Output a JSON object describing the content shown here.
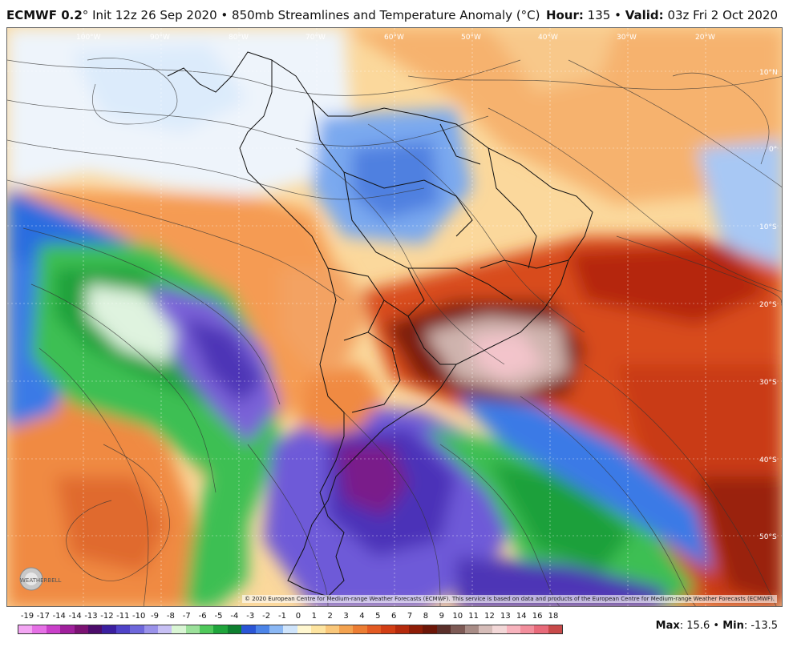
{
  "header": {
    "model": "ECMWF 0.2",
    "model_suffix": "°",
    "init": "Init 12z 26 Sep 2020",
    "sep": "•",
    "product": "850mb Streamlines and Temperature Anomaly (°C)",
    "hour_label": "Hour:",
    "hour_value": "135",
    "valid_label": "Valid:",
    "valid_value": "03z Fri 2 Oct 2020"
  },
  "map": {
    "lon_labels": [
      "100°W",
      "90°W",
      "80°W",
      "70°W",
      "60°W",
      "50°W",
      "40°W",
      "30°W",
      "20°W"
    ],
    "lat_labels": [
      "10°N",
      "0°",
      "10°S",
      "20°S",
      "30°S",
      "40°S",
      "50°S"
    ],
    "copyright": "© 2020 European Centre for Medium-range Weather Forecasts (ECMWF). This service is based on data and products of the European Centre for Medium-range Weather Forecasts (ECMWF).",
    "logo_text": "WEATHERBELL",
    "icon": "weatherbell-logo-icon"
  },
  "legend": {
    "labels": [
      "-19",
      "-17",
      "-14",
      "-14",
      "-13",
      "-12",
      "-11",
      "-10",
      "-9",
      "-8",
      "-7",
      "-6",
      "-5",
      "-4",
      "-3",
      "-2",
      "-1",
      "0",
      "1",
      "2",
      "3",
      "4",
      "5",
      "6",
      "7",
      "8",
      "9",
      "10",
      "11",
      "12",
      "13",
      "14",
      "16",
      "18"
    ],
    "colors": [
      "#f3a6f3",
      "#e570e5",
      "#c93fc9",
      "#a0209c",
      "#7b1273",
      "#4c0c6b",
      "#3b1fa0",
      "#4f43c8",
      "#6e67db",
      "#9a92ea",
      "#c7c0f4",
      "#d9f5d4",
      "#9be09a",
      "#4fc85a",
      "#1fa53b",
      "#0e7f2f",
      "#2a55d6",
      "#4c84e8",
      "#8ab7f4",
      "#cfe4fb",
      "#fff7d0",
      "#fde4a0",
      "#f9c77a",
      "#f3a24f",
      "#ec7d33",
      "#e35a22",
      "#d23e14",
      "#b52a0c",
      "#8e1d07",
      "#6c1608",
      "#5a2f2a",
      "#7d5a55",
      "#a88c86",
      "#d5bcb8",
      "#f2d7d7",
      "#f7b3bd",
      "#f28e9c",
      "#e86a7a",
      "#c84a4a"
    ]
  },
  "maxmin": {
    "max_label": "Max",
    "max_value": ": 15.6",
    "sep": "•",
    "min_label": "Min",
    "min_value": ": -13.5"
  }
}
